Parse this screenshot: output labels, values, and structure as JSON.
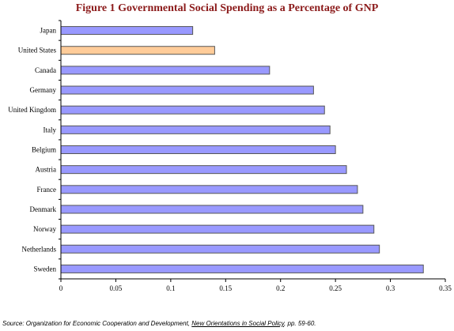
{
  "chart_data": {
    "type": "bar",
    "orientation": "horizontal",
    "title": "Figure 1 Governmental Social Spending as a Percentage of GNP",
    "categories": [
      "Japan",
      "United States",
      "Canada",
      "Germany",
      "United Kingdom",
      "Italy",
      "Belgium",
      "Austria",
      "France",
      "Denmark",
      "Norway",
      "Netherlands",
      "Sweden"
    ],
    "values": [
      0.12,
      0.14,
      0.19,
      0.23,
      0.24,
      0.245,
      0.25,
      0.26,
      0.27,
      0.275,
      0.285,
      0.29,
      0.33
    ],
    "highlight_category": "United States",
    "xlim": [
      0,
      0.35
    ],
    "xticks": [
      "0",
      "0.05",
      "0.1",
      "0.15",
      "0.2",
      "0.25",
      "0.3",
      "0.35"
    ],
    "grid": false,
    "legend": "none",
    "colors": {
      "bar": "#9999ff",
      "highlight": "#ffcc99",
      "bar_outline": "#555555",
      "title": "#8b1a1a"
    }
  },
  "source": {
    "prefix": "Source: Organization for Economic Cooperation and Development, ",
    "publication": "New Orientations in Social Policy",
    "suffix": ", pp. 59-60."
  }
}
